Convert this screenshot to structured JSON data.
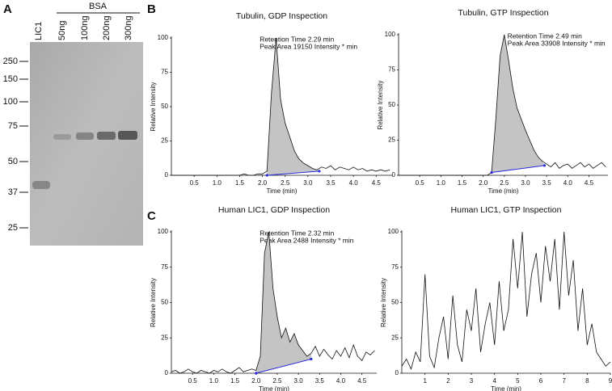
{
  "panels": [
    "A",
    "B",
    "C"
  ],
  "gel": {
    "group_label": "BSA",
    "lanes": [
      "LIC1",
      "50ng",
      "100ng",
      "200ng",
      "300ng"
    ],
    "markers": [
      "250",
      "150",
      "100",
      "75",
      "50",
      "37",
      "25"
    ]
  },
  "chart_data": [
    {
      "type": "line",
      "title": "Tubulin, GDP Inspection",
      "x_label": "Time (min)",
      "y_label": "Relative Intensity",
      "annotations": [
        "Retention Time 2.29 min",
        "Peak Area 19150 Intensity * min"
      ],
      "color": "#111111",
      "fill": "#c4c4c4",
      "baseline_color": "#2b2bdc",
      "integration": {
        "start": [
          2.1,
          0
        ],
        "end": [
          3.25,
          3
        ]
      },
      "x": [
        0,
        0.1,
        0.2,
        0.3,
        0.4,
        0.5,
        0.6,
        0.7,
        0.8,
        0.9,
        1,
        1.1,
        1.2,
        1.3,
        1.4,
        1.5,
        1.6,
        1.7,
        1.8,
        1.9,
        2,
        2.1,
        2.2,
        2.3,
        2.4,
        2.5,
        2.6,
        2.7,
        2.8,
        2.9,
        3,
        3.1,
        3.2,
        3.3,
        3.4,
        3.5,
        3.6,
        3.7,
        3.8,
        3.9,
        4,
        4.1,
        4.2,
        4.3,
        4.4,
        4.5,
        4.6,
        4.7,
        4.8
      ],
      "values": [
        0,
        0,
        0,
        0,
        0,
        0,
        0,
        0,
        0,
        0,
        0,
        0,
        0,
        0,
        0,
        0,
        1,
        0,
        0,
        1,
        1,
        3,
        60,
        100,
        55,
        38,
        28,
        18,
        12,
        9,
        7,
        5,
        4,
        6,
        5,
        7,
        4,
        6,
        5,
        4,
        6,
        4,
        5,
        3,
        4,
        3,
        4,
        3,
        4
      ],
      "xlim": [
        0,
        4.85
      ],
      "ylim": [
        0,
        100
      ],
      "xticks": [
        0.5,
        {
          "value": 1,
          "label": "1.0"
        },
        1.5,
        {
          "value": 2,
          "label": "2.0"
        },
        2.5,
        {
          "value": 3,
          "label": "3.0"
        },
        3.5,
        {
          "value": 4,
          "label": "4.0"
        },
        4.5
      ],
      "yticks": [
        0,
        25,
        50,
        75,
        100
      ]
    },
    {
      "type": "line",
      "title": "Tubulin, GTP Inspection",
      "x_label": "Time (min)",
      "y_label": "Relative Intensity",
      "annotations": [
        "Retention Time 2.49 min",
        "Peak Area 33908 Intensity * min"
      ],
      "color": "#111111",
      "fill": "#c4c4c4",
      "baseline_color": "#2b2bdc",
      "integration": {
        "start": [
          2.2,
          2
        ],
        "end": [
          3.45,
          7
        ]
      },
      "x": [
        0,
        0.1,
        0.2,
        0.3,
        0.4,
        0.5,
        0.6,
        0.7,
        0.8,
        0.9,
        1,
        1.1,
        1.2,
        1.3,
        1.4,
        1.5,
        1.6,
        1.7,
        1.8,
        1.9,
        2,
        2.1,
        2.2,
        2.3,
        2.4,
        2.5,
        2.6,
        2.7,
        2.8,
        2.9,
        3,
        3.1,
        3.2,
        3.3,
        3.4,
        3.5,
        3.6,
        3.7,
        3.8,
        3.9,
        4,
        4.1,
        4.2,
        4.3,
        4.4,
        4.5,
        4.6,
        4.7,
        4.8,
        4.9
      ],
      "values": [
        0,
        0,
        0,
        0,
        0,
        0,
        0,
        0,
        0,
        0,
        0,
        0,
        0,
        0,
        0,
        0,
        0,
        0,
        0,
        0,
        0,
        0,
        2,
        40,
        85,
        100,
        82,
        62,
        48,
        40,
        32,
        25,
        18,
        13,
        10,
        8,
        6,
        9,
        5,
        7,
        8,
        5,
        7,
        9,
        6,
        8,
        5,
        7,
        9,
        6
      ],
      "xlim": [
        0,
        4.95
      ],
      "ylim": [
        0,
        100
      ],
      "xticks": [
        0.5,
        {
          "value": 1,
          "label": "1.0"
        },
        1.5,
        {
          "value": 2,
          "label": "2.0"
        },
        2.5,
        {
          "value": 3,
          "label": "3.0"
        },
        3.5,
        {
          "value": 4,
          "label": "4.0"
        },
        4.5
      ],
      "yticks": [
        0,
        25,
        50,
        75,
        100
      ]
    },
    {
      "type": "line",
      "title": "Human LIC1, GDP Inspection",
      "x_label": "Time (min)",
      "y_label": "Relative Intensity",
      "annotations": [
        "Retention Time 2.32 min",
        "Peak Area 2488 Intensity * min"
      ],
      "color": "#111111",
      "fill": "#c4c4c4",
      "baseline_color": "#2b2bdc",
      "integration": {
        "start": [
          2.0,
          0
        ],
        "end": [
          3.3,
          10
        ]
      },
      "x": [
        0,
        0.1,
        0.2,
        0.3,
        0.4,
        0.5,
        0.6,
        0.7,
        0.8,
        0.9,
        1,
        1.1,
        1.2,
        1.3,
        1.4,
        1.5,
        1.6,
        1.7,
        1.8,
        1.9,
        2,
        2.1,
        2.2,
        2.3,
        2.4,
        2.5,
        2.6,
        2.7,
        2.8,
        2.9,
        3,
        3.1,
        3.2,
        3.3,
        3.4,
        3.5,
        3.6,
        3.7,
        3.8,
        3.9,
        4,
        4.1,
        4.2,
        4.3,
        4.4,
        4.5,
        4.6,
        4.7,
        4.8
      ],
      "values": [
        1,
        2,
        0,
        1,
        3,
        1,
        0,
        2,
        1,
        0,
        2,
        1,
        3,
        1,
        0,
        2,
        4,
        1,
        2,
        3,
        2,
        12,
        85,
        100,
        60,
        40,
        25,
        32,
        22,
        28,
        20,
        16,
        12,
        14,
        19,
        12,
        17,
        13,
        10,
        16,
        12,
        18,
        11,
        20,
        12,
        9,
        15,
        13,
        16
      ],
      "xlim": [
        0,
        4.85
      ],
      "ylim": [
        0,
        100
      ],
      "xticks": [
        0.5,
        {
          "value": 1,
          "label": "1.0"
        },
        1.5,
        {
          "value": 2,
          "label": "2.0"
        },
        2.5,
        {
          "value": 3,
          "label": "3.0"
        },
        3.5,
        {
          "value": 4,
          "label": "4.0"
        },
        4.5
      ],
      "yticks": [
        0,
        25,
        50,
        75,
        100
      ]
    },
    {
      "type": "line",
      "title": "Human LIC1, GTP Inspection",
      "x_label": "Time (min)",
      "y_label": "Relative Intensity",
      "color": "#111111",
      "x": [
        0,
        0.2,
        0.4,
        0.6,
        0.8,
        1,
        1.2,
        1.4,
        1.6,
        1.8,
        2,
        2.2,
        2.4,
        2.6,
        2.8,
        3,
        3.2,
        3.4,
        3.6,
        3.8,
        4,
        4.2,
        4.4,
        4.6,
        4.8,
        5,
        5.2,
        5.4,
        5.6,
        5.8,
        6,
        6.2,
        6.4,
        6.6,
        6.8,
        7,
        7.2,
        7.4,
        7.6,
        7.8,
        8,
        8.2,
        8.4,
        8.6,
        8.8,
        9
      ],
      "values": [
        5,
        10,
        3,
        15,
        8,
        70,
        12,
        4,
        25,
        40,
        10,
        55,
        20,
        8,
        45,
        30,
        60,
        15,
        35,
        50,
        20,
        65,
        30,
        45,
        95,
        60,
        100,
        40,
        70,
        85,
        50,
        90,
        65,
        95,
        45,
        100,
        55,
        80,
        30,
        60,
        20,
        35,
        15,
        10,
        5,
        8
      ],
      "xlim": [
        0,
        9
      ],
      "ylim": [
        0,
        100
      ],
      "xticks": [
        1,
        2,
        3,
        4,
        5,
        6,
        7,
        8,
        9
      ],
      "yticks": [
        0,
        25,
        50,
        75,
        100
      ]
    }
  ]
}
